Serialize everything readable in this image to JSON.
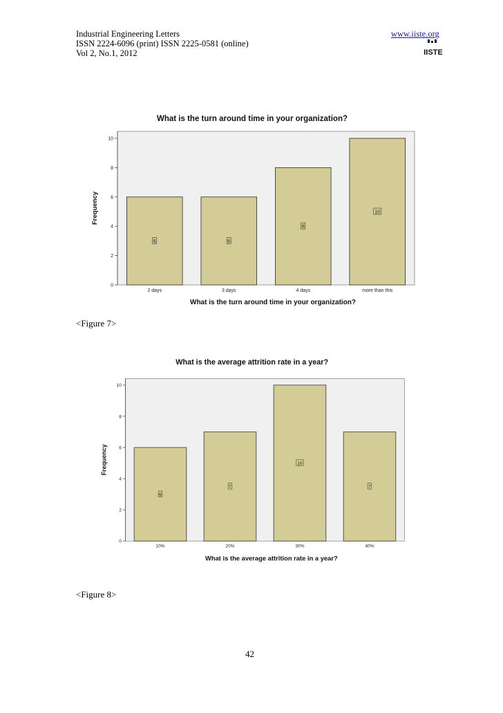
{
  "header": {
    "journal": "Industrial Engineering Letters",
    "issn": "ISSN 2224-6096 (print) ISSN 2225-0581 (online)",
    "volume": "Vol 2, No.1, 2012",
    "website": "www.iiste.org",
    "logo_text": "IISTE"
  },
  "figures": [
    {
      "caption": "<Figure 7>"
    },
    {
      "caption": "<Figure 8>"
    }
  ],
  "page_number": "42",
  "colors": {
    "bar_fill": "#d4cc96",
    "bar_stroke": "#2a2a2a",
    "plot_bg": "#f0f0f0"
  },
  "chart_data": [
    {
      "type": "bar",
      "title": "What is the turn around time in your organization?",
      "xlabel": "What is the turn around time in your organization?",
      "ylabel": "Frequency",
      "categories": [
        "2 days",
        "3 days",
        "4 days",
        "more than this"
      ],
      "values": [
        6,
        6,
        8,
        10
      ],
      "data_labels": [
        "6",
        "6",
        "8",
        "10"
      ],
      "yticks": [
        "0",
        "2",
        "4",
        "6",
        "8",
        "10"
      ],
      "ylim": [
        0,
        10
      ],
      "grid": false,
      "legend": "none"
    },
    {
      "type": "bar",
      "title": "What is the average attrition rate in a year?",
      "xlabel": "What is the average attrition rate in a year?",
      "ylabel": "Frequency",
      "categories": [
        "10%",
        "20%",
        "30%",
        "40%"
      ],
      "values": [
        6,
        7,
        10,
        7
      ],
      "data_labels": [
        "6",
        "7",
        "10",
        "7"
      ],
      "yticks": [
        "0",
        "2",
        "4",
        "6",
        "8",
        "10"
      ],
      "ylim": [
        0,
        10
      ],
      "grid": false,
      "legend": "none"
    }
  ]
}
